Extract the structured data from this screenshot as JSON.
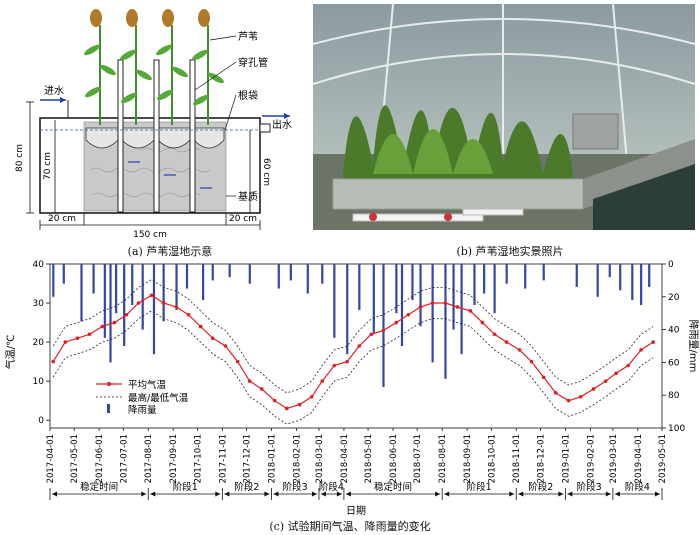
{
  "figure": {
    "caption_a": "(a)  芦苇湿地示意",
    "caption_b": "(b)  芦苇湿地实景照片",
    "caption_c": "(c)  试验期间气温、降雨量的变化"
  },
  "schematic": {
    "label_reed": "芦苇",
    "label_pipe": "穿孔管",
    "label_rootbag": "根袋",
    "label_inlet": "进水",
    "label_outlet": "出水",
    "label_substrate": "基质",
    "dim_80": "80 cm",
    "dim_70": "70 cm",
    "dim_60": "60 cm",
    "dim_20_left": "20 cm",
    "dim_20_right": "20 cm",
    "dim_150": "150 cm"
  },
  "chart_data": {
    "type": "line",
    "xlabel": "日期",
    "ylabel_left": "气温/℃",
    "ylabel_right": "降雨量/mm",
    "ylim_left": [
      -2,
      40
    ],
    "ylim_right": [
      100,
      0
    ],
    "yticks_left": [
      "0",
      "10",
      "20",
      "30",
      "40"
    ],
    "yticks_right": [
      "0",
      "20",
      "40",
      "60",
      "80",
      "100"
    ],
    "legend": {
      "avg": "平均气温",
      "range": "最高/最低气温",
      "rain": "降雨量"
    },
    "legend_position": "lower-left",
    "xticks": [
      "2017-04-01",
      "2017-05-01",
      "2017-06-01",
      "2017-07-01",
      "2017-08-01",
      "2017-09-01",
      "2017-10-01",
      "2017-11-01",
      "2017-12-01",
      "2018-01-01",
      "2018-02-01",
      "2018-03-01",
      "2018-04-01",
      "2018-05-01",
      "2018-06-01",
      "2018-07-01",
      "2018-08-01",
      "2018-09-01",
      "2018-10-01",
      "2018-11-01",
      "2018-12-01",
      "2019-01-01",
      "2019-02-01",
      "2019-03-01",
      "2019-04-01",
      "2019-05-01"
    ],
    "phases": [
      {
        "label": "稳定时间",
        "from": "2017-04-01",
        "to": "2017-08-01"
      },
      {
        "label": "阶段1",
        "from": "2017-08-01",
        "to": "2017-11-01"
      },
      {
        "label": "阶段2",
        "from": "2017-11-01",
        "to": "2018-01-01"
      },
      {
        "label": "阶段3",
        "from": "2018-01-01",
        "to": "2018-03-01"
      },
      {
        "label": "阶段4",
        "from": "2018-03-01",
        "to": "2018-04-01"
      },
      {
        "label": "稳定时间",
        "from": "2018-04-01",
        "to": "2018-08-01"
      },
      {
        "label": "阶段1",
        "from": "2018-08-01",
        "to": "2018-11-01"
      },
      {
        "label": "阶段2",
        "from": "2018-11-01",
        "to": "2019-01-01"
      },
      {
        "label": "阶段3",
        "from": "2019-01-01",
        "to": "2019-03-01"
      },
      {
        "label": "阶段4",
        "from": "2019-03-01",
        "to": "2019-05-01"
      }
    ],
    "series": [
      {
        "name": "平均气温",
        "dates": [
          "2017-04-05",
          "2017-04-20",
          "2017-05-05",
          "2017-05-20",
          "2017-06-05",
          "2017-06-20",
          "2017-07-05",
          "2017-07-20",
          "2017-08-05",
          "2017-08-20",
          "2017-09-05",
          "2017-09-20",
          "2017-10-05",
          "2017-10-20",
          "2017-11-05",
          "2017-11-20",
          "2017-12-05",
          "2017-12-20",
          "2018-01-05",
          "2018-01-20",
          "2018-02-05",
          "2018-02-20",
          "2018-03-05",
          "2018-03-20",
          "2018-04-05",
          "2018-04-20",
          "2018-05-05",
          "2018-05-20",
          "2018-06-05",
          "2018-06-20",
          "2018-07-05",
          "2018-07-20",
          "2018-08-05",
          "2018-08-20",
          "2018-09-05",
          "2018-09-20",
          "2018-10-05",
          "2018-10-20",
          "2018-11-05",
          "2018-11-20",
          "2018-12-05",
          "2018-12-20",
          "2019-01-05",
          "2019-01-20",
          "2019-02-05",
          "2019-02-20",
          "2019-03-05",
          "2019-03-20",
          "2019-04-05",
          "2019-04-20"
        ],
        "values": [
          15,
          20,
          21,
          22,
          24,
          25,
          27,
          30,
          32,
          30,
          29,
          27,
          24,
          21,
          19,
          15,
          10,
          8,
          5,
          3,
          4,
          6,
          10,
          14,
          15,
          19,
          22,
          23,
          25,
          27,
          29,
          30,
          30,
          29,
          28,
          25,
          22,
          20,
          18,
          15,
          11,
          7,
          5,
          6,
          8,
          10,
          12,
          14,
          18,
          20
        ]
      },
      {
        "name": "最高气温",
        "values": [
          19,
          24,
          25,
          26,
          28,
          29,
          31,
          34,
          36,
          34,
          33,
          31,
          28,
          25,
          23,
          19,
          14,
          12,
          9,
          7,
          8,
          10,
          14,
          18,
          19,
          23,
          26,
          27,
          29,
          31,
          33,
          34,
          34,
          33,
          32,
          29,
          26,
          24,
          22,
          19,
          15,
          11,
          9,
          10,
          12,
          14,
          16,
          18,
          22,
          24
        ]
      },
      {
        "name": "最低气温",
        "values": [
          11,
          16,
          17,
          18,
          20,
          21,
          23,
          26,
          28,
          26,
          25,
          23,
          20,
          17,
          15,
          11,
          6,
          4,
          1,
          -1,
          0,
          2,
          6,
          10,
          11,
          15,
          18,
          19,
          21,
          23,
          25,
          26,
          26,
          25,
          24,
          21,
          18,
          16,
          14,
          11,
          7,
          3,
          1,
          2,
          4,
          6,
          8,
          10,
          14,
          16
        ]
      },
      {
        "name": "降雨量",
        "dates": [
          "2017-04-05",
          "2017-04-18",
          "2017-05-10",
          "2017-05-25",
          "2017-06-08",
          "2017-06-15",
          "2017-06-22",
          "2017-07-02",
          "2017-07-12",
          "2017-07-25",
          "2017-08-08",
          "2017-08-20",
          "2017-09-05",
          "2017-09-18",
          "2017-10-08",
          "2017-10-20",
          "2017-11-10",
          "2017-12-05",
          "2018-01-10",
          "2018-01-25",
          "2018-02-15",
          "2018-03-05",
          "2018-03-20",
          "2018-04-05",
          "2018-04-20",
          "2018-05-08",
          "2018-05-20",
          "2018-06-05",
          "2018-06-12",
          "2018-06-25",
          "2018-07-05",
          "2018-07-20",
          "2018-08-05",
          "2018-08-15",
          "2018-08-25",
          "2018-09-10",
          "2018-09-22",
          "2018-10-05",
          "2018-10-20",
          "2018-11-12",
          "2018-12-05",
          "2019-01-15",
          "2019-02-10",
          "2019-02-25",
          "2019-03-10",
          "2019-03-25",
          "2019-04-05",
          "2019-04-15"
        ],
        "values": [
          20,
          12,
          35,
          18,
          45,
          60,
          30,
          50,
          25,
          40,
          55,
          35,
          28,
          15,
          22,
          10,
          8,
          12,
          15,
          10,
          18,
          12,
          45,
          55,
          28,
          42,
          75,
          30,
          50,
          22,
          38,
          60,
          70,
          40,
          55,
          25,
          18,
          30,
          12,
          15,
          10,
          14,
          20,
          8,
          16,
          22,
          25,
          14
        ]
      }
    ]
  }
}
